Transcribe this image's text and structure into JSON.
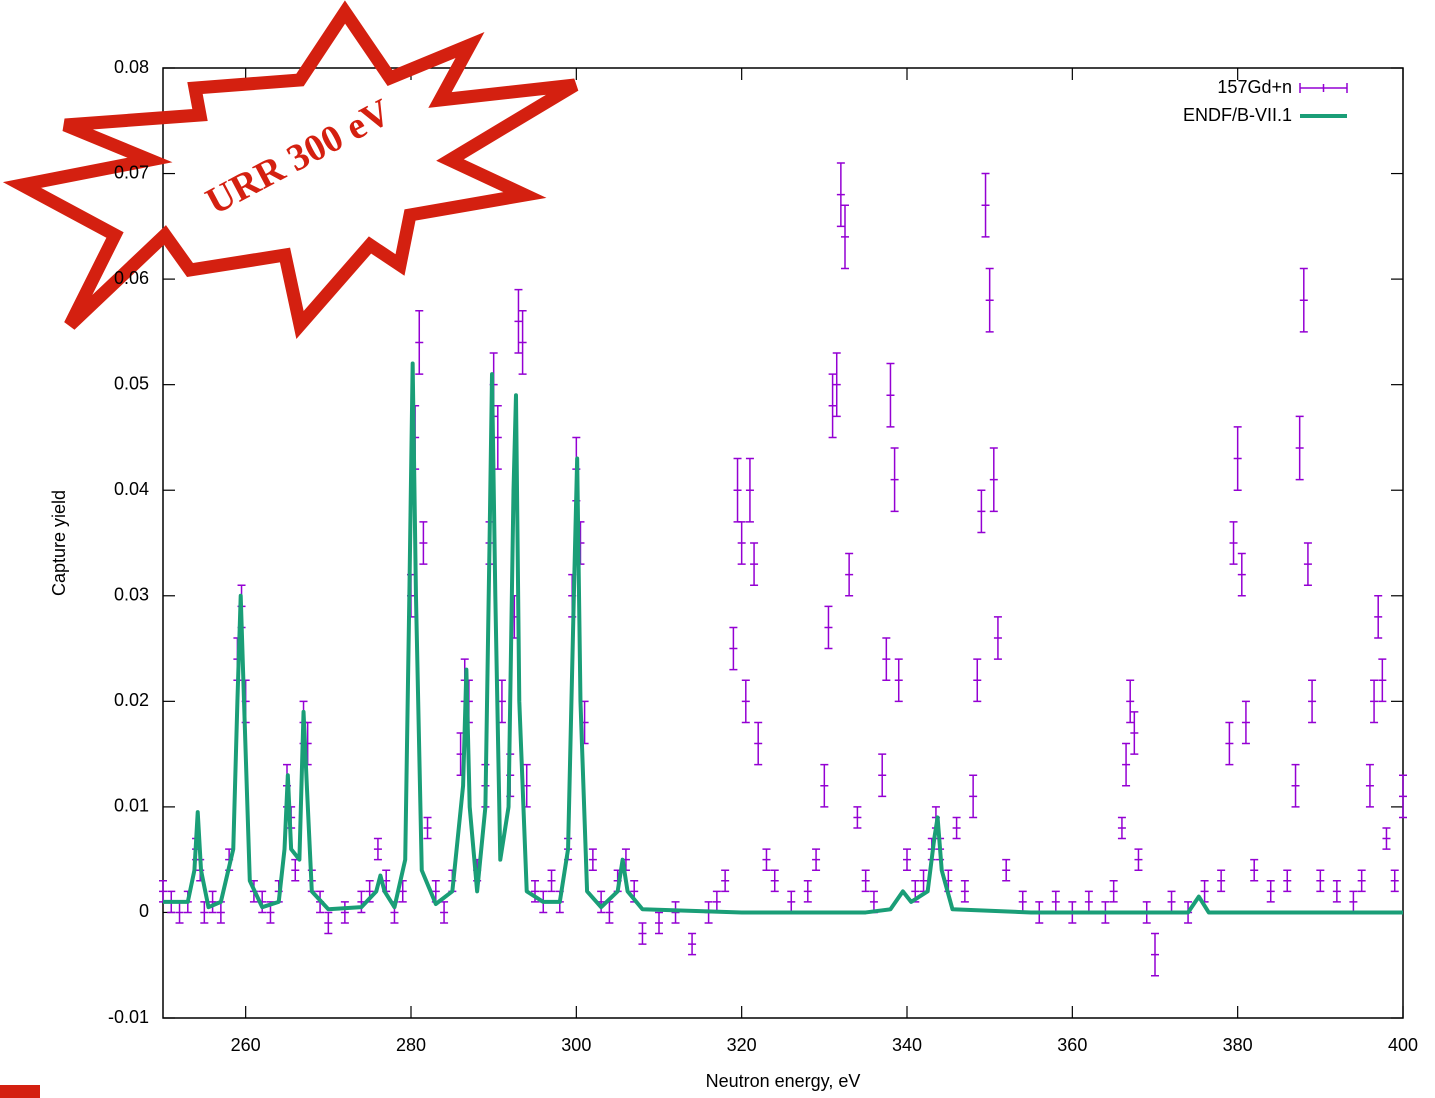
{
  "chart_data": {
    "type": "scatter",
    "annotations": [
      "URR 300 eV"
    ],
    "xlabel": "Neutron energy, eV",
    "ylabel": "Capture yield",
    "xlim": [
      250,
      400
    ],
    "xticks": [
      260,
      280,
      300,
      320,
      340,
      360,
      380,
      400
    ],
    "ylim": [
      -0.01,
      0.08
    ],
    "yticks": [
      -0.01,
      0,
      0.01,
      0.02,
      0.03,
      0.04,
      0.05,
      0.06,
      0.07,
      0.08
    ],
    "legend": "top-right",
    "series": [
      {
        "name": "157Gd+n",
        "type": "errorbars",
        "color": "#9400d3",
        "x": [
          250,
          251,
          252,
          253,
          254,
          254.5,
          255,
          256,
          257,
          258,
          259,
          259.5,
          260,
          261,
          262,
          263,
          264,
          265,
          265.5,
          266,
          267,
          267.5,
          268,
          269,
          270,
          272,
          274,
          275,
          276,
          277,
          278,
          279,
          280,
          280.5,
          281,
          281.5,
          282,
          283,
          284,
          285,
          286,
          286.5,
          287,
          288,
          289,
          289.5,
          290,
          290.5,
          291,
          292,
          292.5,
          293,
          293.5,
          294,
          295,
          296,
          297,
          298,
          299,
          299.5,
          300,
          300.5,
          301,
          302,
          303,
          304,
          305,
          306,
          307,
          308,
          310,
          312,
          314,
          316,
          317,
          318,
          319,
          319.5,
          320,
          320.5,
          321,
          321.5,
          322,
          323,
          324,
          326,
          328,
          329,
          330,
          330.5,
          331,
          331.5,
          332,
          332.5,
          333,
          334,
          335,
          336,
          337,
          337.5,
          338,
          338.5,
          339,
          340,
          341,
          342,
          343,
          343.5,
          344,
          345,
          346,
          347,
          348,
          348.5,
          349,
          349.5,
          350,
          350.5,
          351,
          352,
          354,
          356,
          358,
          360,
          362,
          364,
          365,
          366,
          366.5,
          367,
          367.5,
          368,
          369,
          370,
          372,
          374,
          376,
          378,
          379,
          379.5,
          380,
          380.5,
          381,
          382,
          384,
          386,
          387,
          387.5,
          388,
          388.5,
          389,
          390,
          392,
          394,
          395,
          396,
          396.5,
          397,
          397.5,
          398,
          399,
          400
        ],
        "values": [
          0.002,
          0.001,
          0,
          0.001,
          0.006,
          0.004,
          0,
          0.001,
          0,
          0.005,
          0.024,
          0.029,
          0.02,
          0.002,
          0.001,
          0,
          0.002,
          0.012,
          0.009,
          0.004,
          0.018,
          0.016,
          0.003,
          0.001,
          -0.001,
          0,
          0.001,
          0.002,
          0.006,
          0.003,
          0,
          0.002,
          0.03,
          0.045,
          0.054,
          0.035,
          0.008,
          0.002,
          0,
          0.003,
          0.015,
          0.022,
          0.02,
          0.004,
          0.012,
          0.035,
          0.05,
          0.045,
          0.02,
          0.013,
          0.028,
          0.056,
          0.054,
          0.012,
          0.002,
          0.001,
          0.003,
          0.001,
          0.006,
          0.03,
          0.042,
          0.035,
          0.018,
          0.005,
          0.001,
          0,
          0.003,
          0.005,
          0.002,
          -0.002,
          -0.001,
          0,
          -0.003,
          0,
          0.001,
          0.003,
          0.025,
          0.04,
          0.035,
          0.02,
          0.04,
          0.033,
          0.016,
          0.005,
          0.003,
          0.001,
          0.002,
          0.005,
          0.012,
          0.027,
          0.048,
          0.05,
          0.068,
          0.064,
          0.032,
          0.009,
          0.003,
          0.001,
          0.013,
          0.024,
          0.049,
          0.041,
          0.022,
          0.005,
          0.002,
          0.003,
          0.006,
          0.009,
          0.006,
          0.003,
          0.008,
          0.002,
          0.011,
          0.022,
          0.038,
          0.067,
          0.058,
          0.041,
          0.026,
          0.004,
          0.001,
          0,
          0.001,
          0,
          0.001,
          0,
          0.002,
          0.008,
          0.014,
          0.02,
          0.017,
          0.005,
          0,
          -0.004,
          0.001,
          0,
          0.002,
          0.003,
          0.016,
          0.035,
          0.043,
          0.032,
          0.018,
          0.004,
          0.002,
          0.003,
          0.012,
          0.044,
          0.058,
          0.033,
          0.02,
          0.003,
          0.002,
          0.001,
          0.003,
          0.012,
          0.02,
          0.028,
          0.022,
          0.007,
          0.003,
          0.011
        ],
        "errors": [
          0.001,
          0.001,
          0.001,
          0.001,
          0.001,
          0.001,
          0.001,
          0.001,
          0.001,
          0.001,
          0.002,
          0.002,
          0.002,
          0.001,
          0.001,
          0.001,
          0.001,
          0.002,
          0.001,
          0.001,
          0.002,
          0.002,
          0.001,
          0.001,
          0.001,
          0.001,
          0.001,
          0.001,
          0.001,
          0.001,
          0.001,
          0.001,
          0.002,
          0.003,
          0.003,
          0.002,
          0.001,
          0.001,
          0.001,
          0.001,
          0.002,
          0.002,
          0.002,
          0.001,
          0.002,
          0.002,
          0.003,
          0.003,
          0.002,
          0.002,
          0.002,
          0.003,
          0.003,
          0.002,
          0.001,
          0.001,
          0.001,
          0.001,
          0.001,
          0.002,
          0.003,
          0.002,
          0.002,
          0.001,
          0.001,
          0.001,
          0.001,
          0.001,
          0.001,
          0.001,
          0.001,
          0.001,
          0.001,
          0.001,
          0.001,
          0.001,
          0.002,
          0.003,
          0.002,
          0.002,
          0.003,
          0.002,
          0.002,
          0.001,
          0.001,
          0.001,
          0.001,
          0.001,
          0.002,
          0.002,
          0.003,
          0.003,
          0.003,
          0.003,
          0.002,
          0.001,
          0.001,
          0.001,
          0.002,
          0.002,
          0.003,
          0.003,
          0.002,
          0.001,
          0.001,
          0.001,
          0.001,
          0.001,
          0.001,
          0.001,
          0.001,
          0.001,
          0.002,
          0.002,
          0.002,
          0.003,
          0.003,
          0.003,
          0.002,
          0.001,
          0.001,
          0.001,
          0.001,
          0.001,
          0.001,
          0.001,
          0.001,
          0.001,
          0.002,
          0.002,
          0.002,
          0.001,
          0.001,
          0.002,
          0.001,
          0.001,
          0.001,
          0.001,
          0.002,
          0.002,
          0.003,
          0.002,
          0.002,
          0.001,
          0.001,
          0.001,
          0.002,
          0.003,
          0.003,
          0.002,
          0.002,
          0.001,
          0.001,
          0.001,
          0.001,
          0.002,
          0.002,
          0.002,
          0.002,
          0.001,
          0.001,
          0.002
        ]
      },
      {
        "name": "ENDF/B-VII.1",
        "type": "line",
        "color": "#1a9e77",
        "x": [
          250,
          253,
          253.8,
          254.2,
          254.6,
          255.5,
          257,
          258.5,
          259,
          259.4,
          259.8,
          260.5,
          262,
          264,
          264.7,
          265.1,
          265.5,
          266.5,
          267,
          267.4,
          268,
          270,
          274,
          275.8,
          276.3,
          276.8,
          278,
          279.3,
          279.8,
          280.2,
          280.6,
          281.3,
          283,
          285,
          286.3,
          286.7,
          287.1,
          288,
          289,
          289.5,
          289.8,
          290.2,
          290.8,
          291.8,
          292.4,
          292.7,
          293.1,
          294,
          296,
          298,
          299,
          299.7,
          300.1,
          300.5,
          301.3,
          303,
          305,
          305.6,
          306.2,
          308,
          320,
          335,
          338,
          339.5,
          340.5,
          342.5,
          343.3,
          343.7,
          344.2,
          345.5,
          355,
          374,
          375.3,
          376.5,
          400
        ],
        "values": [
          0.001,
          0.001,
          0.004,
          0.0095,
          0.004,
          0.0005,
          0.001,
          0.006,
          0.02,
          0.03,
          0.02,
          0.003,
          0.0005,
          0.001,
          0.006,
          0.013,
          0.006,
          0.005,
          0.019,
          0.012,
          0.002,
          0.0003,
          0.0005,
          0.002,
          0.0035,
          0.002,
          0.0005,
          0.005,
          0.03,
          0.052,
          0.03,
          0.004,
          0.0008,
          0.002,
          0.012,
          0.023,
          0.01,
          0.002,
          0.01,
          0.035,
          0.051,
          0.03,
          0.005,
          0.01,
          0.04,
          0.049,
          0.02,
          0.002,
          0.001,
          0.001,
          0.006,
          0.03,
          0.043,
          0.02,
          0.002,
          0.0005,
          0.002,
          0.005,
          0.002,
          0.0003,
          0,
          0,
          0.0003,
          0.002,
          0.001,
          0.002,
          0.007,
          0.009,
          0.004,
          0.0003,
          0,
          0,
          0.0015,
          0,
          0
        ]
      }
    ]
  }
}
